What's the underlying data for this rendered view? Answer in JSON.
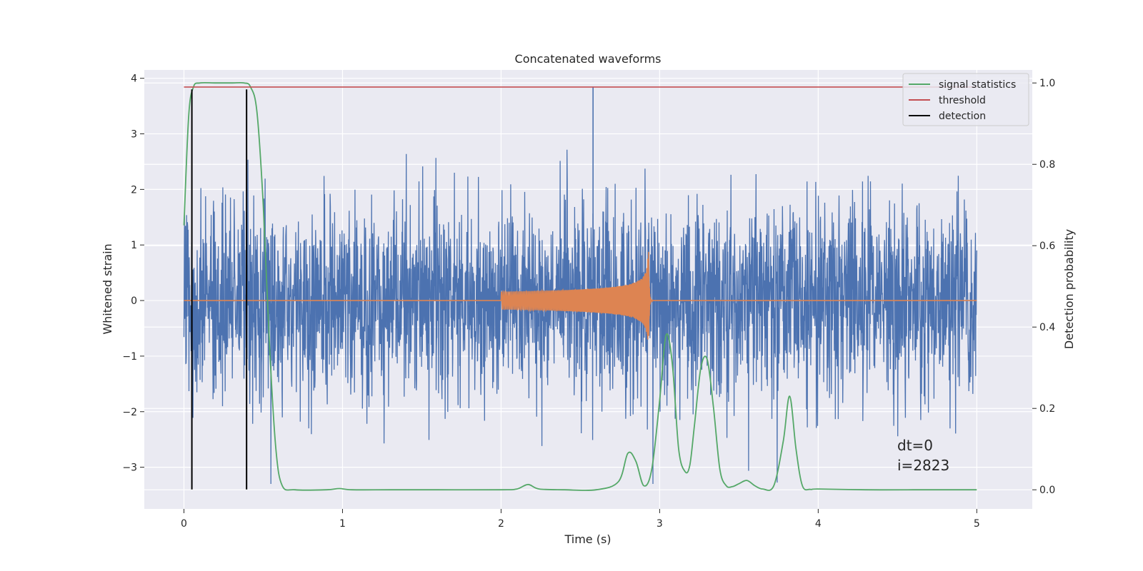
{
  "chart_data": {
    "type": "line",
    "title": "Concatenated waveforms",
    "xlabel": "Time (s)",
    "ylabel": "Whitened strain",
    "y2label": "Detection probability",
    "xlim": [
      -0.25,
      5.35
    ],
    "ylim": [
      -3.75,
      4.15
    ],
    "y2lim": [
      -0.047,
      1.032
    ],
    "xticks": [
      0,
      1,
      2,
      3,
      4,
      5
    ],
    "yticks": [
      -3,
      -2,
      -1,
      0,
      1,
      2,
      3,
      4
    ],
    "yticklabels": [
      "−3",
      "−2",
      "−1",
      "0",
      "1",
      "2",
      "3",
      "4"
    ],
    "y2ticks": [
      0.0,
      0.2,
      0.4,
      0.6,
      0.8,
      1.0
    ],
    "y2ticklabels": [
      "0.0",
      "0.2",
      "0.4",
      "0.6",
      "0.8",
      "1.0"
    ],
    "grid": true,
    "legend_position": "top-right",
    "colors": {
      "background": "#eaeaf2",
      "grid": "#ffffff",
      "strain": "#4c72b0",
      "injected_waveform": "#dd8452",
      "signal_statistics": "#55a868",
      "threshold": "#c44e52",
      "detection": "#000000"
    },
    "series": [
      {
        "name": "signal statistics",
        "axis": "right",
        "x": [
          0,
          0.03,
          0.06,
          0.1,
          0.2,
          0.3,
          0.38,
          0.42,
          0.46,
          0.5,
          0.54,
          0.58,
          0.62,
          0.7,
          0.9,
          0.98,
          1.06,
          1.3,
          1.6,
          2.0,
          2.1,
          2.17,
          2.24,
          2.4,
          2.6,
          2.74,
          2.8,
          2.85,
          2.9,
          2.95,
          3.0,
          3.04,
          3.08,
          3.12,
          3.16,
          3.19,
          3.22,
          3.26,
          3.3,
          3.34,
          3.38,
          3.42,
          3.46,
          3.5,
          3.55,
          3.6,
          3.65,
          3.72,
          3.78,
          3.82,
          3.86,
          3.9,
          3.95,
          4.0,
          4.3,
          4.6,
          5.0
        ],
        "values": [
          0.65,
          0.92,
          0.99,
          1.0,
          1.0,
          1.0,
          1.0,
          0.99,
          0.93,
          0.7,
          0.35,
          0.1,
          0.01,
          0.0,
          0.0,
          0.003,
          0.0,
          0.0,
          0.0,
          0.0,
          0.002,
          0.013,
          0.002,
          0.0,
          0.0,
          0.02,
          0.09,
          0.07,
          0.01,
          0.05,
          0.22,
          0.38,
          0.31,
          0.1,
          0.045,
          0.06,
          0.16,
          0.3,
          0.32,
          0.2,
          0.05,
          0.01,
          0.008,
          0.015,
          0.023,
          0.01,
          0.002,
          0.01,
          0.12,
          0.23,
          0.1,
          0.01,
          0.001,
          0.002,
          0.0,
          0.0,
          0.0
        ]
      },
      {
        "name": "threshold",
        "axis": "right",
        "x": [
          0,
          5
        ],
        "values": [
          0.99,
          0.99
        ]
      },
      {
        "name": "detection",
        "axis": "left",
        "type": "vlines",
        "x": [
          0.05,
          0.395
        ],
        "y": [
          -3.4,
          3.8
        ]
      },
      {
        "name": "",
        "axis": "left",
        "type": "noise",
        "x_range": [
          0,
          5
        ],
        "typical_amplitude": 1.9,
        "peak_max": 3.85,
        "peak_min": -3.3
      },
      {
        "name": "",
        "axis": "left",
        "type": "chirp",
        "x_range": [
          2.0,
          2.93
        ],
        "amplitude_start": 0.16,
        "amplitude_peak": 1.0
      }
    ],
    "annotations": [
      "dt=0",
      "i=2823"
    ]
  }
}
